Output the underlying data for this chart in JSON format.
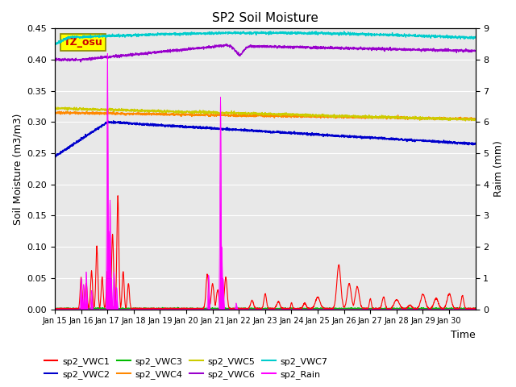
{
  "title": "SP2 Soil Moisture",
  "xlabel": "Time",
  "ylabel_left": "Soil Moisture (m3/m3)",
  "ylabel_right": "Raim (mm)",
  "ylim_left": [
    0,
    0.45
  ],
  "ylim_right": [
    0,
    9.0
  ],
  "yticks_left": [
    0.0,
    0.05,
    0.1,
    0.15,
    0.2,
    0.25,
    0.3,
    0.35,
    0.4,
    0.45
  ],
  "yticks_right": [
    0.0,
    1.0,
    2.0,
    3.0,
    4.0,
    5.0,
    6.0,
    7.0,
    8.0,
    9.0
  ],
  "xtick_labels": [
    "Jan 15",
    "Jan 16",
    "Jan 17",
    "Jan 18",
    "Jan 19",
    "Jan 20",
    "Jan 21",
    "Jan 22",
    "Jan 23",
    "Jan 24",
    "Jan 25",
    "Jan 26",
    "Jan 27",
    "Jan 28",
    "Jan 29",
    "Jan 30"
  ],
  "bg_color": "#e8e8e8",
  "colors": {
    "vwc1": "#ff0000",
    "vwc2": "#0000cc",
    "vwc3": "#00bb00",
    "vwc4": "#ff8800",
    "vwc5": "#cccc00",
    "vwc6": "#9900cc",
    "vwc7": "#00cccc",
    "rain": "#ff00ff"
  },
  "tz_label": "TZ_osu",
  "tz_bg": "#ffff00",
  "tz_fg": "#cc0000",
  "tz_border": "#888800"
}
